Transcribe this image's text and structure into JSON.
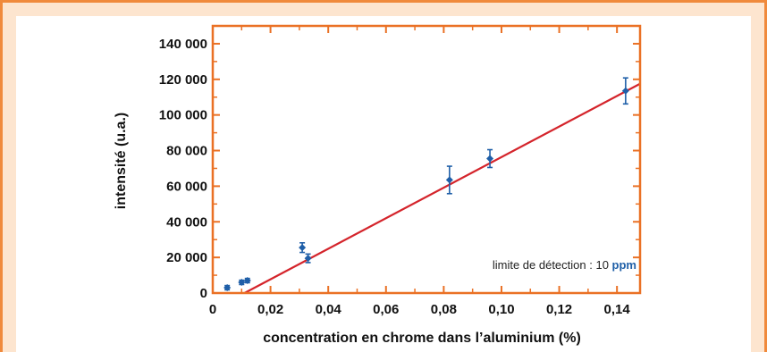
{
  "colors": {
    "frame_border": "#f08a3c",
    "frame_fill": "#fde5cf",
    "axes": "#ea7125",
    "fit_line": "#d4242b",
    "points": "#1f5fa8",
    "unit_text": "#1f5fa8"
  },
  "chart_data": {
    "type": "scatter",
    "title": "",
    "xlabel": "concentration en chrome dans l’aluminium (%)",
    "ylabel": "intensité (u.a.)",
    "xlim": [
      0,
      0.148
    ],
    "ylim": [
      0,
      150000
    ],
    "xticks": [
      0,
      0.02,
      0.04,
      0.06,
      0.08,
      0.1,
      0.12,
      0.14
    ],
    "xtick_labels": [
      "0",
      "0,02",
      "0,04",
      "0,06",
      "0,08",
      "0,10",
      "0,12",
      "0,14"
    ],
    "yticks": [
      0,
      20000,
      40000,
      60000,
      80000,
      100000,
      120000,
      140000
    ],
    "ytick_labels": [
      "0",
      "20 000",
      "40 000",
      "60 000",
      "80 000",
      "100 000",
      "120 000",
      "140 000"
    ],
    "grid": false,
    "series": [
      {
        "kind": "points-with-error-bars",
        "x": [
          0.005,
          0.01,
          0.012,
          0.031,
          0.033,
          0.082,
          0.096,
          0.143
        ],
        "y": [
          3000,
          6000,
          7000,
          25500,
          19500,
          63500,
          75500,
          113500
        ],
        "error": [
          1200,
          1200,
          1200,
          2700,
          2400,
          7700,
          5000,
          7300
        ]
      },
      {
        "kind": "linear-fit",
        "x": [
          0.011,
          0.148
        ],
        "y": [
          0,
          117500
        ]
      }
    ],
    "annotation": {
      "prefix": "limite de détection : 10 ",
      "unit": "ppm",
      "position": "bottom-right"
    }
  }
}
